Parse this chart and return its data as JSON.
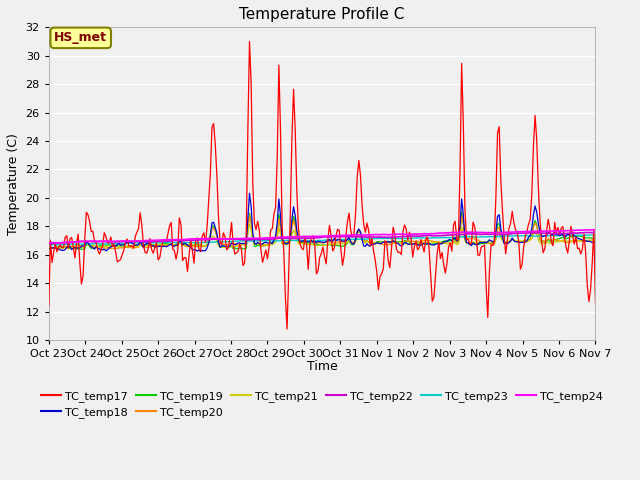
{
  "title": "Temperature Profile C",
  "xlabel": "Time",
  "ylabel": "Temperature (C)",
  "ylim": [
    10,
    32
  ],
  "yticks": [
    10,
    12,
    14,
    16,
    18,
    20,
    22,
    24,
    26,
    28,
    30,
    32
  ],
  "fig_bg_color": "#f0f0f0",
  "plot_bg_color": "#f0f0f0",
  "annotation_text": "HS_met",
  "annotation_box_color": "#ffff99",
  "annotation_border_color": "#808000",
  "series_colors": {
    "TC_temp17": "#ff0000",
    "TC_temp18": "#0000cc",
    "TC_temp19": "#00cc00",
    "TC_temp20": "#ff8800",
    "TC_temp21": "#cccc00",
    "TC_temp22": "#cc00cc",
    "TC_temp23": "#00cccc",
    "TC_temp24": "#ff00ff"
  },
  "xtick_labels": [
    "Oct 23",
    "Oct 24",
    "Oct 25",
    "Oct 26",
    "Oct 27",
    "Oct 28",
    "Oct 29",
    "Oct 30",
    "Oct 31",
    "Nov 1",
    "Nov 2",
    "Nov 3",
    "Nov 4",
    "Nov 5",
    "Nov 6",
    "Nov 7"
  ],
  "n_points": 336
}
